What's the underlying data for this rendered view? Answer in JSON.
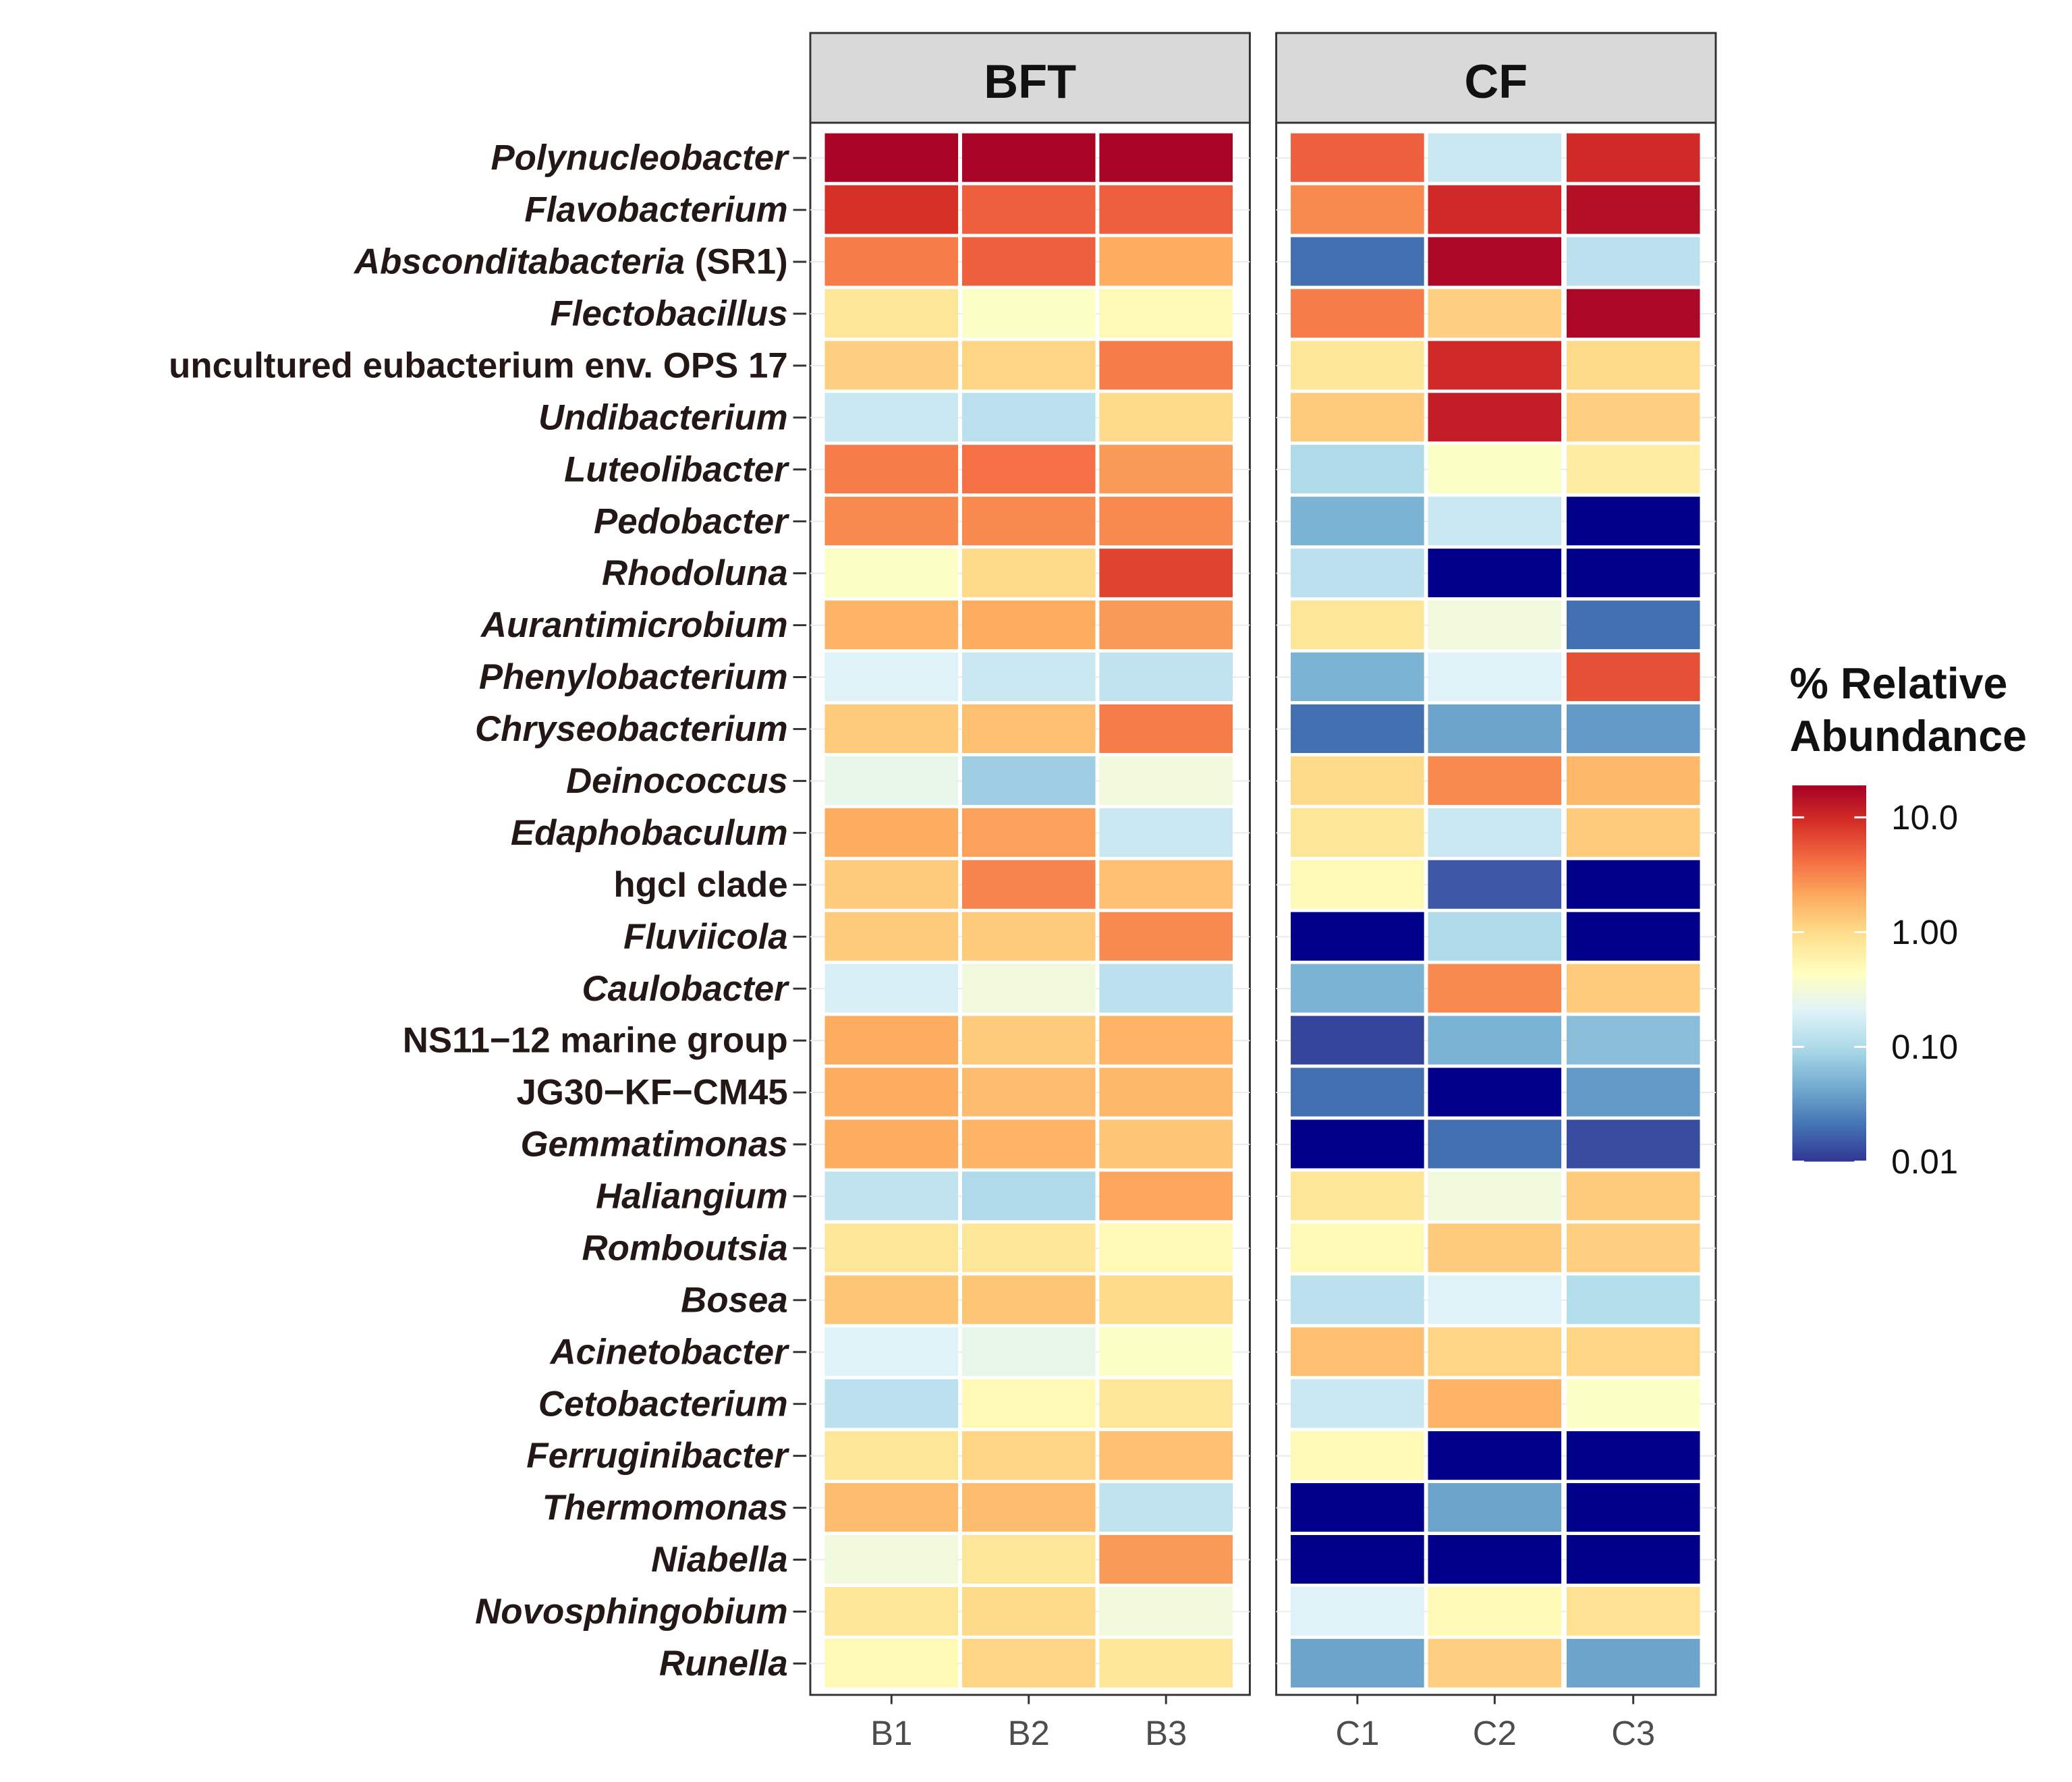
{
  "chart_data": {
    "type": "heatmap",
    "title": "",
    "facets": [
      {
        "label": "BFT",
        "columns": [
          "B1",
          "B2",
          "B3"
        ]
      },
      {
        "label": "CF",
        "columns": [
          "C1",
          "C2",
          "C3"
        ]
      }
    ],
    "rows": [
      {
        "label": "Polynucleobacter",
        "italic": true,
        "suffix": ""
      },
      {
        "label": "Flavobacterium",
        "italic": true,
        "suffix": ""
      },
      {
        "label": "Absconditabacteria",
        "italic": true,
        "suffix": " (SR1)"
      },
      {
        "label": "Flectobacillus",
        "italic": true,
        "suffix": ""
      },
      {
        "label": "uncultured eubacterium env. OPS 17",
        "italic": false,
        "suffix": ""
      },
      {
        "label": "Undibacterium",
        "italic": true,
        "suffix": ""
      },
      {
        "label": "Luteolibacter",
        "italic": true,
        "suffix": ""
      },
      {
        "label": "Pedobacter",
        "italic": true,
        "suffix": ""
      },
      {
        "label": "Rhodoluna",
        "italic": true,
        "suffix": ""
      },
      {
        "label": "Aurantimicrobium",
        "italic": true,
        "suffix": ""
      },
      {
        "label": "Phenylobacterium",
        "italic": true,
        "suffix": ""
      },
      {
        "label": "Chryseobacterium",
        "italic": true,
        "suffix": ""
      },
      {
        "label": "Deinococcus",
        "italic": true,
        "suffix": ""
      },
      {
        "label": "Edaphobaculum",
        "italic": true,
        "suffix": ""
      },
      {
        "label": "hgcI clade",
        "italic": false,
        "suffix": ""
      },
      {
        "label": "Fluviicola",
        "italic": true,
        "suffix": ""
      },
      {
        "label": "Caulobacter",
        "italic": true,
        "suffix": ""
      },
      {
        "label": "NS11−12 marine group",
        "italic": false,
        "suffix": ""
      },
      {
        "label": "JG30−KF−CM45",
        "italic": false,
        "suffix": ""
      },
      {
        "label": "Gemmatimonas",
        "italic": true,
        "suffix": ""
      },
      {
        "label": "Haliangium",
        "italic": true,
        "suffix": ""
      },
      {
        "label": "Romboutsia",
        "italic": true,
        "suffix": ""
      },
      {
        "label": "Bosea",
        "italic": true,
        "suffix": ""
      },
      {
        "label": "Acinetobacter",
        "italic": true,
        "suffix": ""
      },
      {
        "label": "Cetobacterium",
        "italic": true,
        "suffix": ""
      },
      {
        "label": "Ferruginibacter",
        "italic": true,
        "suffix": ""
      },
      {
        "label": "Thermomonas",
        "italic": true,
        "suffix": ""
      },
      {
        "label": "Niabella",
        "italic": true,
        "suffix": ""
      },
      {
        "label": "Novosphingobium",
        "italic": true,
        "suffix": ""
      },
      {
        "label": "Runella",
        "italic": true,
        "suffix": ""
      }
    ],
    "values": [
      [
        18,
        18,
        18,
        5,
        0.15,
        10
      ],
      [
        9,
        5,
        5,
        3,
        10,
        15
      ],
      [
        3.5,
        5,
        2,
        0.02,
        17,
        0.12
      ],
      [
        0.8,
        0.4,
        0.5,
        3.5,
        1.2,
        17
      ],
      [
        1.2,
        1.1,
        3.5,
        0.8,
        10,
        1.0
      ],
      [
        0.15,
        0.12,
        1.0,
        1.3,
        12,
        1.2
      ],
      [
        3.5,
        4,
        2.5,
        0.1,
        0.4,
        0.7
      ],
      [
        3,
        3,
        3,
        0.05,
        0.15,
        0.005
      ],
      [
        0.4,
        1.0,
        7,
        0.12,
        0.005,
        0.005
      ],
      [
        1.8,
        2,
        2.5,
        0.8,
        0.3,
        0.02
      ],
      [
        0.2,
        0.15,
        0.13,
        0.05,
        0.2,
        6
      ],
      [
        1.3,
        1.5,
        3.5,
        0.02,
        0.04,
        0.035
      ],
      [
        0.25,
        0.08,
        0.3,
        1.0,
        3,
        1.7
      ],
      [
        2,
        2.3,
        0.15,
        0.8,
        0.15,
        1.3
      ],
      [
        1.3,
        3.2,
        1.5,
        0.5,
        0.015,
        0.005
      ],
      [
        1.3,
        1.3,
        3,
        0.005,
        0.1,
        0.005
      ],
      [
        0.18,
        0.3,
        0.12,
        0.05,
        3,
        1.3
      ],
      [
        2,
        1.3,
        1.8,
        0.012,
        0.05,
        0.06
      ],
      [
        2,
        1.6,
        1.7,
        0.02,
        0.003,
        0.035
      ],
      [
        2,
        1.8,
        1.4,
        0.004,
        0.02,
        0.013
      ],
      [
        0.13,
        0.1,
        2.2,
        0.8,
        0.3,
        1.3
      ],
      [
        0.8,
        0.8,
        0.5,
        0.5,
        1.3,
        1.2
      ],
      [
        1.4,
        1.4,
        1.0,
        0.12,
        0.2,
        0.11
      ],
      [
        0.2,
        0.25,
        0.4,
        1.5,
        1.1,
        1.1
      ],
      [
        0.12,
        0.5,
        0.8,
        0.15,
        1.8,
        0.4
      ],
      [
        0.8,
        1.1,
        1.5,
        0.5,
        0.003,
        0.003
      ],
      [
        1.6,
        1.6,
        0.13,
        0.004,
        0.04,
        0.004
      ],
      [
        0.3,
        0.8,
        2.5,
        0.003,
        0.003,
        0.003
      ],
      [
        0.8,
        1.0,
        0.3,
        0.2,
        0.5,
        0.9
      ],
      [
        0.5,
        1.1,
        0.8,
        0.04,
        1.2,
        0.04
      ]
    ],
    "legend": {
      "title_line1": "% Relative",
      "title_line2": "Abundance",
      "scale": "log10",
      "ticks": [
        "10.0",
        "1.00",
        "0.10",
        "0.01"
      ],
      "tick_values": [
        10,
        1,
        0.1,
        0.01
      ],
      "range": [
        0.01,
        19
      ],
      "placement": "right"
    },
    "colors": [
      "#313695",
      "#4575b4",
      "#74add1",
      "#abd9e9",
      "#e0f3f8",
      "#ffffbf",
      "#fee090",
      "#fdae61",
      "#f46d43",
      "#d73027",
      "#a50026"
    ],
    "below_range_color": "#00008b"
  }
}
